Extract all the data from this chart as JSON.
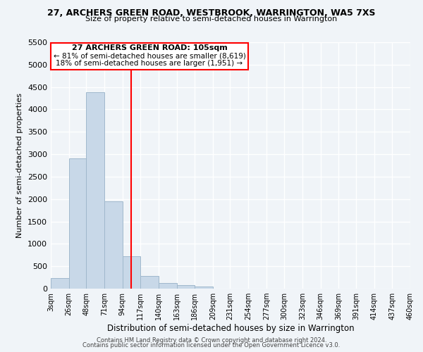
{
  "title": "27, ARCHERS GREEN ROAD, WESTBROOK, WARRINGTON, WA5 7XS",
  "subtitle": "Size of property relative to semi-detached houses in Warrington",
  "xlabel": "Distribution of semi-detached houses by size in Warrington",
  "ylabel": "Number of semi-detached properties",
  "bar_color": "#c8d8e8",
  "bar_edge_color": "#a0b8cc",
  "background_color": "#f0f4f8",
  "grid_color": "#ffffff",
  "property_size": 105,
  "property_line_color": "red",
  "annotation_line1": "27 ARCHERS GREEN ROAD: 105sqm",
  "annotation_line2": "← 81% of semi-detached houses are smaller (8,619)",
  "annotation_line3": "18% of semi-detached houses are larger (1,951) →",
  "annotation_box_color": "red",
  "bin_edges": [
    3,
    26,
    48,
    71,
    94,
    117,
    140,
    163,
    186,
    209,
    231,
    254,
    277,
    300,
    323,
    346,
    369,
    391,
    414,
    437,
    460
  ],
  "bin_counts": [
    230,
    2900,
    4380,
    1950,
    730,
    290,
    130,
    75,
    50,
    0,
    0,
    0,
    0,
    0,
    0,
    0,
    0,
    0,
    0,
    0
  ],
  "tick_labels": [
    "3sqm",
    "26sqm",
    "48sqm",
    "71sqm",
    "94sqm",
    "117sqm",
    "140sqm",
    "163sqm",
    "186sqm",
    "209sqm",
    "231sqm",
    "254sqm",
    "277sqm",
    "300sqm",
    "323sqm",
    "346sqm",
    "369sqm",
    "391sqm",
    "414sqm",
    "437sqm",
    "460sqm"
  ],
  "ylim": [
    0,
    5500
  ],
  "yticks": [
    0,
    500,
    1000,
    1500,
    2000,
    2500,
    3000,
    3500,
    4000,
    4500,
    5000,
    5500
  ],
  "footer_line1": "Contains HM Land Registry data © Crown copyright and database right 2024.",
  "footer_line2": "Contains public sector information licensed under the Open Government Licence v3.0."
}
